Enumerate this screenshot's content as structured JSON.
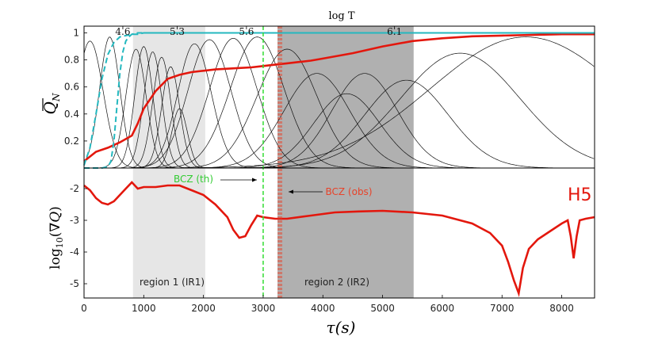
{
  "chart_data": {
    "type": "line",
    "top_axis_title": "log T",
    "top_axis_ticks": [
      {
        "tau": 650,
        "label": "4.6"
      },
      {
        "tau": 1560,
        "label": "5.3"
      },
      {
        "tau": 2720,
        "label": "5.6"
      },
      {
        "tau": 5200,
        "label": "6.1"
      }
    ],
    "xlabel": "τ(s)",
    "xlim": [
      0,
      8550
    ],
    "xticks": [
      0,
      1000,
      2000,
      3000,
      4000,
      5000,
      6000,
      7000,
      8000
    ],
    "xtick_labels": [
      "0",
      "1000",
      "2000",
      "3000",
      "4000",
      "5000",
      "6000",
      "7000",
      "8000"
    ],
    "regions": [
      {
        "name": "region 1 (IR1)",
        "x0": 820,
        "x1": 2030,
        "color": "#e6e6e6"
      },
      {
        "name": "region 2 (IR2)",
        "x0": 3240,
        "x1": 5520,
        "color": "#b0b0b0"
      }
    ],
    "bcz_th": {
      "x": 3000,
      "label": "BCZ (th)",
      "color": "#33dd33"
    },
    "bcz_obs": {
      "x": 3280,
      "label": "BCZ (obs)",
      "color": "#e8432a"
    },
    "top_panel": {
      "ylabel": "Q̄_N",
      "ylim": [
        0,
        1.05
      ],
      "yticks": [
        0.2,
        0.4,
        0.6,
        0.8,
        1
      ],
      "ytick_labels": [
        "0.2",
        "0.4",
        "0.6",
        "0.8",
        "1"
      ],
      "series": [
        {
          "name": "cumulative",
          "color": "#e3170d",
          "x": [
            0,
            200,
            400,
            600,
            800,
            900,
            1000,
            1200,
            1400,
            1600,
            1800,
            2000,
            2200,
            2400,
            2600,
            2800,
            3000,
            3200,
            3400,
            3600,
            3800,
            4000,
            4500,
            5000,
            5500,
            6000,
            6500,
            7000,
            7500,
            8000,
            8550
          ],
          "y": [
            0.05,
            0.12,
            0.15,
            0.19,
            0.24,
            0.33,
            0.44,
            0.57,
            0.66,
            0.69,
            0.71,
            0.72,
            0.73,
            0.735,
            0.74,
            0.745,
            0.755,
            0.765,
            0.775,
            0.785,
            0.795,
            0.81,
            0.85,
            0.9,
            0.94,
            0.96,
            0.975,
            0.98,
            0.985,
            0.99,
            0.99
          ]
        },
        {
          "name": "dashed envelope A",
          "color": "#24b8bf",
          "x": [
            0,
            100,
            200,
            300,
            400,
            500,
            600,
            700,
            800,
            900,
            1000,
            1500,
            2000,
            3000,
            4000,
            5000,
            6000,
            7000,
            8000,
            8550
          ],
          "y": [
            0.02,
            0.15,
            0.4,
            0.66,
            0.84,
            0.93,
            0.97,
            0.98,
            0.99,
            0.99,
            1.0,
            1.0,
            1.0,
            1.0,
            1.0,
            1.0,
            1.0,
            1.0,
            1.0,
            1.0
          ]
        },
        {
          "name": "dashed envelope B",
          "color": "#24b8bf",
          "x": [
            0,
            300,
            400,
            450,
            500,
            550,
            600,
            650,
            700,
            750,
            800,
            900,
            1000,
            2000,
            4000,
            6000,
            8550
          ],
          "y": [
            0.0,
            0.0,
            0.01,
            0.05,
            0.2,
            0.45,
            0.7,
            0.86,
            0.94,
            0.97,
            0.99,
            1.0,
            1.0,
            1.0,
            1.0,
            1.0,
            1.0
          ]
        }
      ],
      "kernels": [
        {
          "c": 100,
          "w": 220,
          "a": 0.94
        },
        {
          "c": 430,
          "w": 170,
          "a": 0.97
        },
        {
          "c": 870,
          "w": 170,
          "a": 0.88
        },
        {
          "c": 1000,
          "w": 150,
          "a": 0.9
        },
        {
          "c": 1150,
          "w": 150,
          "a": 0.86
        },
        {
          "c": 1300,
          "w": 150,
          "a": 0.82
        },
        {
          "c": 1450,
          "w": 150,
          "a": 0.75
        },
        {
          "c": 1600,
          "w": 130,
          "a": 0.44
        },
        {
          "c": 1850,
          "w": 280,
          "a": 0.92
        },
        {
          "c": 2100,
          "w": 360,
          "a": 0.95
        },
        {
          "c": 2500,
          "w": 400,
          "a": 0.96
        },
        {
          "c": 2900,
          "w": 450,
          "a": 0.97
        },
        {
          "c": 3400,
          "w": 500,
          "a": 0.88
        },
        {
          "c": 3900,
          "w": 550,
          "a": 0.7
        },
        {
          "c": 4400,
          "w": 550,
          "a": 0.55
        },
        {
          "c": 4700,
          "w": 550,
          "a": 0.7
        },
        {
          "c": 5400,
          "w": 700,
          "a": 0.65
        },
        {
          "c": 6300,
          "w": 1000,
          "a": 0.85
        },
        {
          "c": 7400,
          "w": 1600,
          "a": 0.97
        }
      ]
    },
    "bottom_panel": {
      "ylabel": "log10(∇Q̄)",
      "ylim": [
        -5.45,
        -1.35
      ],
      "yticks": [
        -2,
        -3,
        -4,
        -5
      ],
      "ytick_labels": [
        "-2",
        "-3",
        "-4",
        "-5"
      ],
      "label": "H5",
      "series": [
        {
          "name": "gradient",
          "color": "#e3170d",
          "x": [
            0,
            100,
            200,
            300,
            400,
            500,
            600,
            700,
            800,
            900,
            1000,
            1200,
            1400,
            1600,
            1800,
            2000,
            2200,
            2400,
            2500,
            2600,
            2700,
            2800,
            2900,
            3000,
            3200,
            3400,
            3800,
            4200,
            4600,
            5000,
            5500,
            6000,
            6500,
            6800,
            7000,
            7100,
            7200,
            7280,
            7350,
            7450,
            7600,
            7800,
            8000,
            8100,
            8150,
            8200,
            8250,
            8300,
            8400,
            8550
          ],
          "y": [
            -1.9,
            -2.05,
            -2.3,
            -2.45,
            -2.5,
            -2.4,
            -2.2,
            -2.0,
            -1.8,
            -2.0,
            -1.95,
            -1.95,
            -1.9,
            -1.9,
            -2.05,
            -2.2,
            -2.5,
            -2.9,
            -3.3,
            -3.55,
            -3.5,
            -3.15,
            -2.85,
            -2.9,
            -2.95,
            -2.95,
            -2.85,
            -2.75,
            -2.72,
            -2.7,
            -2.75,
            -2.85,
            -3.1,
            -3.4,
            -3.8,
            -4.3,
            -4.9,
            -5.3,
            -4.5,
            -3.9,
            -3.6,
            -3.35,
            -3.1,
            -3.0,
            -3.5,
            -4.2,
            -3.5,
            -3.0,
            -2.95,
            -2.9
          ]
        }
      ]
    }
  }
}
